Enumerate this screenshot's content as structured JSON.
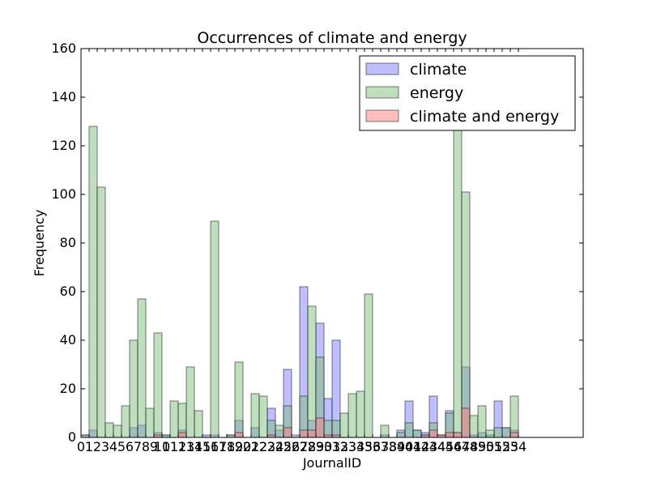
{
  "chart_data": {
    "type": "bar",
    "title": "Occurrences of climate and energy",
    "xlabel": "JournalID",
    "ylabel": "Frequency",
    "ylim": [
      0,
      160
    ],
    "xlim": [
      0,
      62
    ],
    "yticks": [
      0,
      20,
      40,
      60,
      80,
      100,
      120,
      140,
      160
    ],
    "xticks": [
      0,
      1,
      2,
      3,
      4,
      5,
      6,
      7,
      8,
      9,
      10,
      11,
      12,
      13,
      14,
      15,
      16,
      17,
      18,
      19,
      20,
      21,
      22,
      23,
      24,
      25,
      26,
      27,
      28,
      29,
      30,
      31,
      32,
      33,
      34,
      35,
      36,
      37,
      38,
      39,
      40,
      41,
      42,
      43,
      44,
      45,
      46,
      47,
      48,
      49,
      50,
      51,
      52,
      53,
      54
    ],
    "grid": false,
    "legend_position": "top-right",
    "series": [
      {
        "name": "climate",
        "color": "#7f7fff",
        "values": [
          1,
          3,
          0,
          0,
          0,
          0,
          4,
          5,
          0,
          2,
          1,
          0,
          3,
          0,
          0,
          1,
          1,
          0,
          1,
          7,
          0,
          4,
          0,
          12,
          3,
          28,
          1,
          62,
          7,
          47,
          16,
          40,
          0,
          0,
          0,
          0,
          0,
          1,
          0,
          3,
          15,
          3,
          2,
          17,
          1,
          11,
          2,
          29,
          1,
          2,
          1,
          15,
          4,
          3,
          0
        ]
      },
      {
        "name": "energy",
        "color": "#7fbf7f",
        "values": [
          1,
          128,
          103,
          6,
          5,
          13,
          40,
          57,
          12,
          43,
          1,
          15,
          14,
          29,
          11,
          0,
          89,
          0,
          1,
          31,
          0,
          18,
          17,
          7,
          5,
          13,
          0,
          17,
          54,
          33,
          7,
          7,
          10,
          18,
          19,
          59,
          0,
          5,
          0,
          2,
          6,
          3,
          1,
          6,
          1,
          10,
          127,
          101,
          9,
          13,
          3,
          4,
          4,
          17,
          0
        ]
      },
      {
        "name": "climate and energy",
        "color": "#ff7f7f",
        "values": [
          0,
          0,
          0,
          0,
          0,
          0,
          0,
          0,
          0,
          1,
          0,
          0,
          2,
          0,
          0,
          0,
          0,
          0,
          0,
          2,
          0,
          0,
          0,
          1,
          0,
          4,
          0,
          3,
          3,
          8,
          1,
          1,
          0,
          0,
          0,
          0,
          0,
          0,
          0,
          0,
          0,
          0,
          1,
          3,
          1,
          2,
          2,
          12,
          0,
          0,
          0,
          0,
          0,
          2,
          0
        ]
      }
    ]
  }
}
